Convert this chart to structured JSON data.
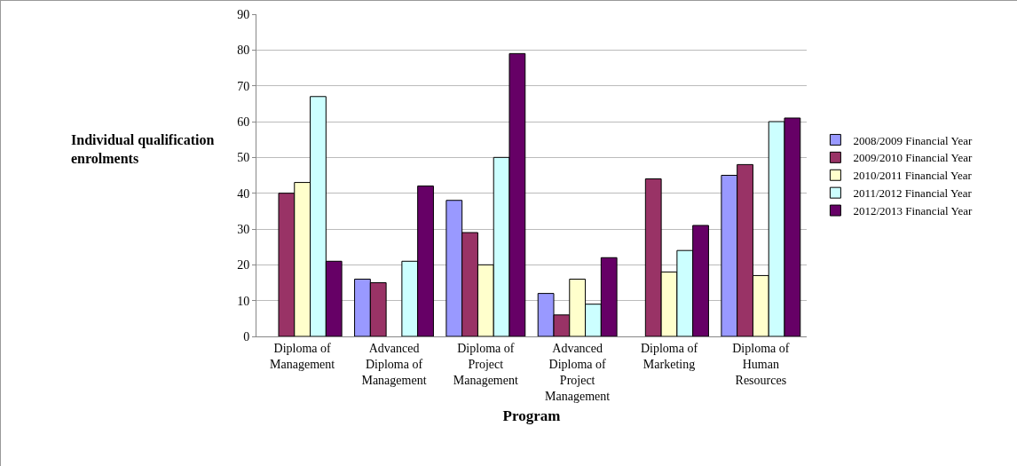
{
  "chart_data": {
    "type": "bar",
    "xlabel": "Program",
    "ylabel": "Individual qualification\nenrolments",
    "categories": [
      "Diploma of\nManagement",
      "Advanced\nDiploma of\nManagement",
      "Diploma of\nProject\nManagement",
      "Advanced\nDiploma of\nProject\nManagement",
      "Diploma of\nMarketing",
      "Diploma of\nHuman\nResources"
    ],
    "series": [
      {
        "name": "2008/2009 Financial Year",
        "color": "#9999ff",
        "values": [
          null,
          16,
          38,
          12,
          null,
          45
        ]
      },
      {
        "name": "2009/2010 Financial Year",
        "color": "#993366",
        "values": [
          40,
          15,
          29,
          6,
          44,
          48
        ]
      },
      {
        "name": "2010/2011 Financial Year",
        "color": "#ffffcc",
        "values": [
          43,
          null,
          20,
          16,
          18,
          17
        ]
      },
      {
        "name": "2011/2012 Financial Year",
        "color": "#ccffff",
        "values": [
          67,
          21,
          50,
          9,
          24,
          60
        ]
      },
      {
        "name": "2012/2013 Financial Year",
        "color": "#660066",
        "values": [
          21,
          42,
          79,
          22,
          31,
          61
        ]
      }
    ],
    "ylim": [
      0,
      90
    ],
    "yticks": [
      0,
      10,
      20,
      30,
      40,
      50,
      60,
      70,
      80,
      90
    ],
    "grid": "y",
    "legend": "right"
  }
}
